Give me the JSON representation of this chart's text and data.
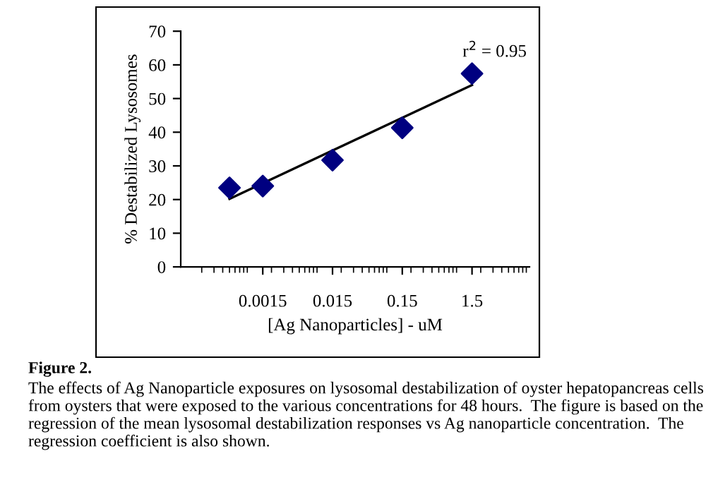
{
  "chart_data": {
    "type": "scatter",
    "xlabel": "[Ag Nanoparticles] - uM",
    "ylabel": "% Destabilized Lysosomes",
    "log": "x",
    "xlim": [
      0.0001,
      10
    ],
    "xticks": [
      {
        "value": 0.0015,
        "label": "0.0015"
      },
      {
        "value": 0.015,
        "label": "0.015"
      },
      {
        "value": 0.15,
        "label": "0.15"
      },
      {
        "value": 1.5,
        "label": "1.5"
      }
    ],
    "ylim": [
      0,
      70
    ],
    "yticks": [
      0,
      10,
      20,
      30,
      40,
      50,
      60,
      70
    ],
    "grid": false,
    "legend": false,
    "marker": "diamond",
    "series": [
      {
        "color": "#000080",
        "x": [
          0.0005,
          0.0015,
          0.015,
          0.15,
          1.5
        ],
        "values": [
          23.5,
          24,
          31.7,
          41.3,
          57.4
        ]
      },
      {
        "type": "line",
        "color": "#000000",
        "marker": "none",
        "line_style": "solid",
        "x": [
          0.0005,
          1.5
        ],
        "values": [
          20.2,
          54
        ]
      }
    ],
    "annotations": [
      "r$^{2}$ = 0.95",
      "Figure 2.",
      "The effects of Ag Nanoparticle exposures on lysosomal destabilization of oyster hepatopancreas cells from oysters that were exposed to the various concentrations for 48 hours.  The figure is based on the regression of the mean lysosomal destabilization responses vs Ag nanoparticle concentration.  The regression coefficient is also shown."
    ]
  }
}
